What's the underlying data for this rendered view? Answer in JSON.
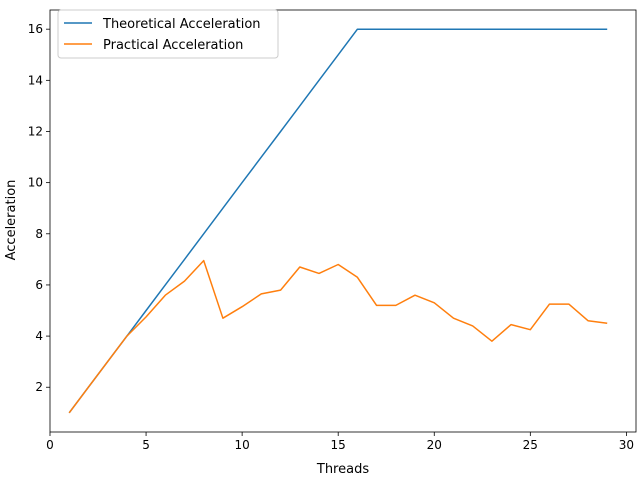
{
  "chart_data": {
    "type": "line",
    "title": "",
    "xlabel": "Threads",
    "ylabel": "Acceleration",
    "xlim": [
      0,
      30.5
    ],
    "ylim": [
      0.25,
      16.75
    ],
    "xticks": [
      0,
      5,
      10,
      15,
      20,
      25,
      30
    ],
    "yticks": [
      2,
      4,
      6,
      8,
      10,
      12,
      14,
      16
    ],
    "grid": false,
    "legend_position": "top-left",
    "x": [
      1,
      2,
      3,
      4,
      5,
      6,
      7,
      8,
      9,
      10,
      11,
      12,
      13,
      14,
      15,
      16,
      17,
      18,
      19,
      20,
      21,
      22,
      23,
      24,
      25,
      26,
      27,
      28,
      29
    ],
    "series": [
      {
        "name": "Theoretical Acceleration",
        "color": "#1f77b4",
        "values": [
          1,
          2,
          3,
          4,
          5,
          6,
          7,
          8,
          9,
          10,
          11,
          12,
          13,
          14,
          15,
          16,
          16,
          16,
          16,
          16,
          16,
          16,
          16,
          16,
          16,
          16,
          16,
          16,
          16
        ]
      },
      {
        "name": "Practical Acceleration",
        "color": "#ff7f0e",
        "values": [
          1,
          2,
          3,
          4,
          4.75,
          5.6,
          6.15,
          6.95,
          4.7,
          5.15,
          5.65,
          5.8,
          6.7,
          6.45,
          6.8,
          6.3,
          5.2,
          5.2,
          5.6,
          5.3,
          4.7,
          4.4,
          3.8,
          4.45,
          4.25,
          5.25,
          5.25,
          4.6,
          4.5
        ]
      }
    ]
  }
}
